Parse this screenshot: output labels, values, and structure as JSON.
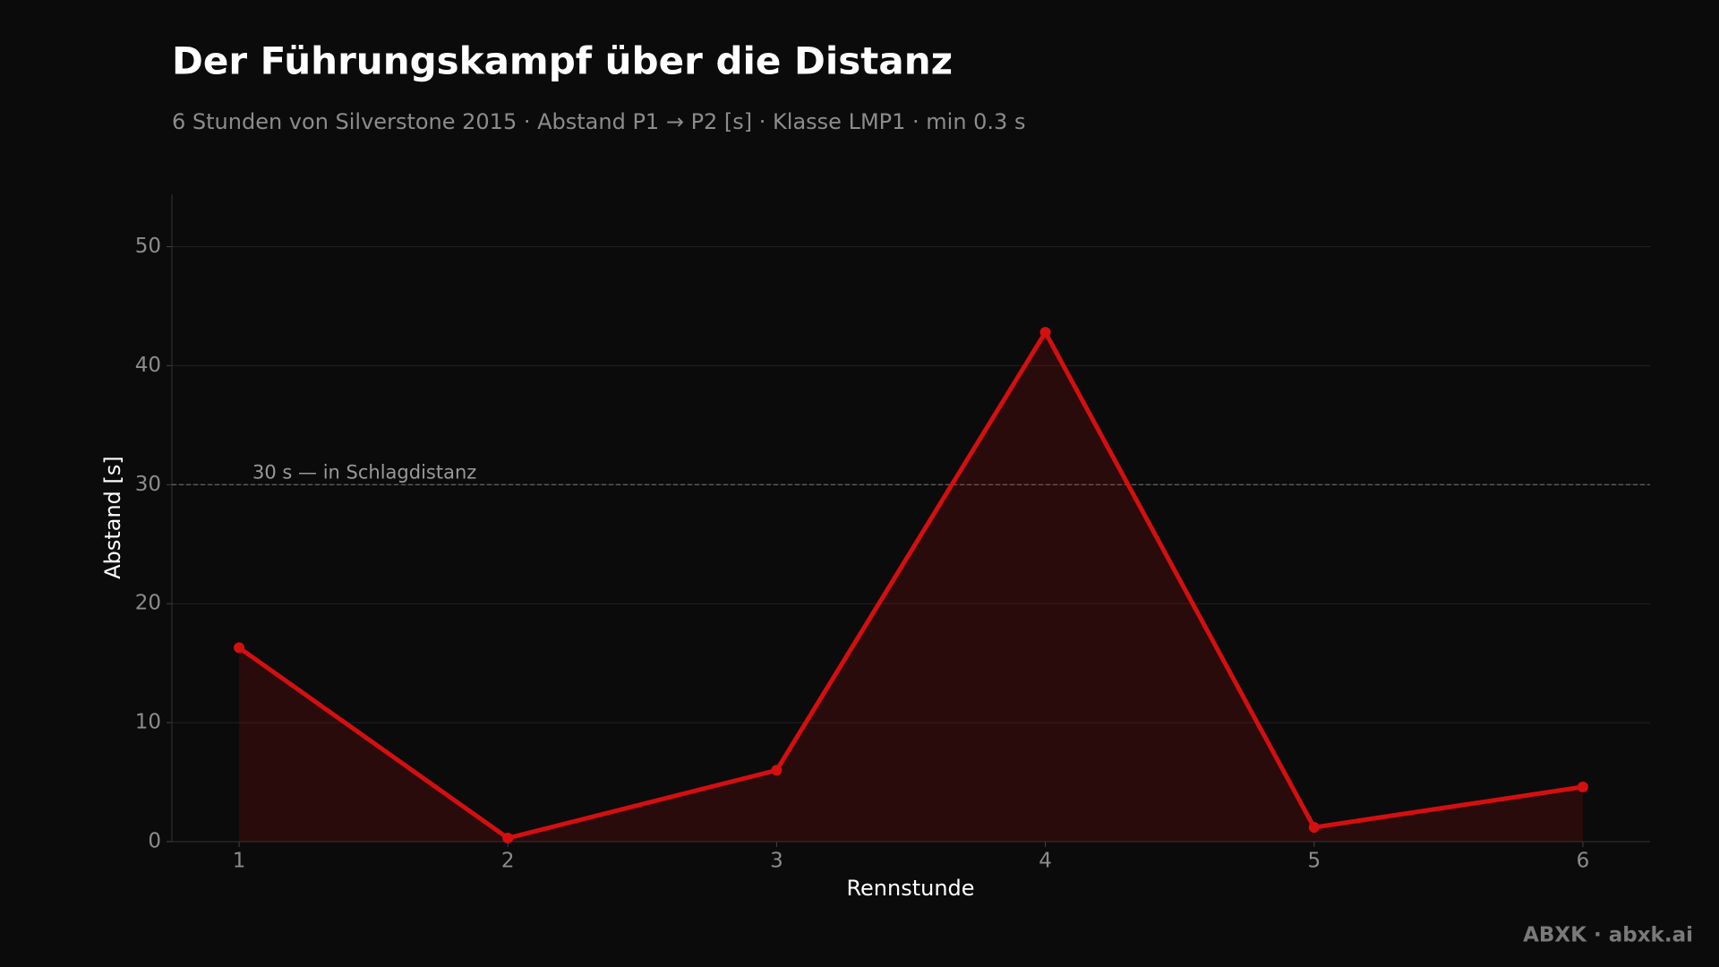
{
  "chart_data": {
    "type": "line",
    "title": "Der Führungskampf über die Distanz",
    "subtitle": "6 Stunden von Silverstone 2015 · Abstand P1 → P2 [s] · Klasse LMP1 · min 0.3 s",
    "xlabel": "Rennstunde",
    "ylabel": "Abstand [s]",
    "x": [
      1,
      2,
      3,
      4,
      5,
      6
    ],
    "series": [
      {
        "name": "Abstand P1 → P2",
        "color": "#d40f0f",
        "values": [
          16.3,
          0.3,
          6.0,
          42.8,
          1.2,
          4.6
        ]
      }
    ],
    "area": true,
    "xlim": [
      0.75,
      6.25
    ],
    "ylim": [
      0,
      54.4
    ],
    "xticks": [
      1,
      2,
      3,
      4,
      5,
      6
    ],
    "yticks": [
      0,
      10,
      20,
      30,
      40,
      50
    ],
    "grid": true,
    "annotations": [
      {
        "y": 30,
        "text": "30 s — in Schlagdistanz"
      }
    ],
    "credit": "ABXK · abxk.ai"
  }
}
